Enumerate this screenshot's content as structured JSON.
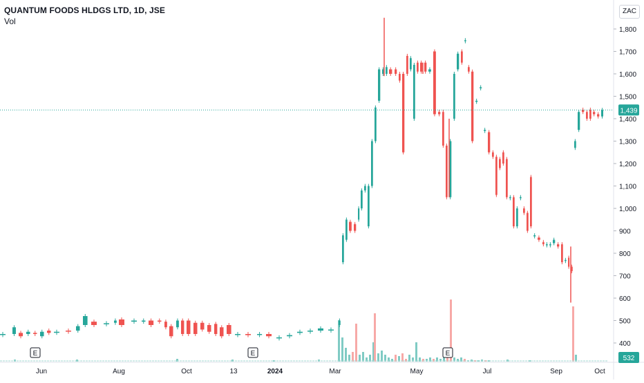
{
  "header": {
    "symbol_title": "QUANTUM FOODS HLDGS LTD, 1D, JSE",
    "volume_label": "Vol",
    "currency": "ZAC"
  },
  "chart_data": {
    "type": "candlestick",
    "title": "QUANTUM FOODS HLDGS LTD, 1D, JSE",
    "y_axis": {
      "position": "right",
      "ylim": [
        330,
        1870
      ],
      "ticks": [
        400,
        500,
        600,
        700,
        800,
        900,
        1000,
        1100,
        1200,
        1300,
        1400,
        1500,
        1600,
        1700,
        1800
      ],
      "tick_labels": [
        "400",
        "500",
        "600",
        "700",
        "800",
        "900",
        "1,000",
        "1,100",
        "1,200",
        "1,300",
        "1,400",
        "1,500",
        "1,600",
        "1,700",
        "1,800"
      ]
    },
    "x_axis": {
      "tick_labels": [
        "Jun",
        "Aug",
        "Oct",
        "13",
        "2024",
        "Mar",
        "May",
        "Jul",
        "Sep",
        "Oct"
      ],
      "bold_labels": [
        "2024"
      ]
    },
    "last_price": {
      "value": 1439,
      "label": "1,439"
    },
    "last_volume_label": "532",
    "earnings_markers": [
      "E",
      "E",
      "E"
    ],
    "grid": false,
    "colors": {
      "up": "#26a69a",
      "down": "#ef5350",
      "up_volume": "#80cbc4",
      "down_volume": "#f7a9a7",
      "last_price": "#26a69a",
      "axis_text": "#131722"
    },
    "series": [
      {
        "name": "",
        "kind": "ohlc",
        "segments": [
          [
            0,
            440,
            440
          ],
          [
            18,
            440,
            470
          ],
          [
            27,
            445,
            430
          ],
          [
            38,
            440,
            450
          ],
          [
            48,
            445,
            440
          ],
          [
            58,
            430,
            450
          ],
          [
            68,
            455,
            445
          ],
          [
            78,
            450,
            450
          ],
          [
            95,
            455,
            452
          ],
          [
            110,
            455,
            475
          ],
          [
            120,
            480,
            520
          ],
          [
            132,
            495,
            480
          ],
          [
            150,
            485,
            488
          ],
          [
            165,
            490,
            500
          ],
          [
            172,
            505,
            480
          ],
          [
            190,
            495,
            500
          ],
          [
            205,
            495,
            500
          ],
          [
            215,
            500,
            480
          ],
          [
            228,
            500,
            495
          ],
          [
            238,
            495,
            470
          ],
          [
            245,
            475,
            430
          ],
          [
            255,
            470,
            500
          ],
          [
            262,
            500,
            440
          ],
          [
            270,
            500,
            440
          ],
          [
            280,
            490,
            440
          ],
          [
            290,
            490,
            460
          ],
          [
            300,
            480,
            450
          ],
          [
            310,
            485,
            440
          ],
          [
            318,
            470,
            430
          ],
          [
            328,
            480,
            440
          ],
          [
            340,
            440,
            440
          ],
          [
            355,
            440,
            435
          ],
          [
            372,
            440,
            440
          ],
          [
            385,
            440,
            430
          ],
          [
            400,
            425,
            425
          ],
          [
            415,
            430,
            435
          ],
          [
            430,
            445,
            450
          ],
          [
            445,
            455,
            455
          ],
          [
            460,
            455,
            465
          ],
          [
            475,
            460,
            460
          ],
          [
            490,
            480,
            500
          ],
          [
            495,
            760,
            880
          ],
          [
            500,
            860,
            950
          ],
          [
            505,
            940,
            900
          ],
          [
            512,
            930,
            900
          ],
          [
            518,
            950,
            1000
          ],
          [
            522,
            1000,
            1080
          ],
          [
            527,
            1080,
            1100
          ],
          [
            532,
            920,
            1100
          ],
          [
            537,
            1100,
            1300
          ],
          [
            542,
            1300,
            1450
          ],
          [
            547,
            1480,
            1620
          ],
          [
            553,
            1600,
            1620
          ],
          [
            558,
            1600,
            1630
          ],
          [
            563,
            1620,
            1600
          ],
          [
            571,
            1620,
            1600
          ],
          [
            577,
            1600,
            1570
          ],
          [
            582,
            1600,
            1250
          ],
          [
            588,
            1680,
            1600
          ],
          [
            593,
            1620,
            1670
          ],
          [
            598,
            1400,
            1640
          ],
          [
            603,
            1650,
            1610
          ],
          [
            608,
            1650,
            1610
          ],
          [
            614,
            1650,
            1610
          ],
          [
            620,
            1610,
            1620
          ],
          [
            627,
            1700,
            1420
          ],
          [
            634,
            1430,
            1420
          ],
          [
            640,
            1430,
            1280
          ],
          [
            645,
            1280,
            1050
          ],
          [
            650,
            1050,
            1300
          ],
          [
            656,
            1400,
            1600
          ],
          [
            661,
            1620,
            1690
          ],
          [
            667,
            1700,
            1650
          ],
          [
            672,
            1750,
            1750
          ],
          [
            677,
            1630,
            1610
          ],
          [
            682,
            1610,
            1300
          ],
          [
            688,
            1480,
            1480
          ],
          [
            694,
            1540,
            1540
          ],
          [
            700,
            1350,
            1350
          ],
          [
            706,
            1340,
            1250
          ],
          [
            712,
            1250,
            1230
          ],
          [
            717,
            1230,
            1060
          ],
          [
            722,
            1220,
            1180
          ],
          [
            727,
            1250,
            1200
          ],
          [
            732,
            1220,
            1050
          ],
          [
            737,
            1050,
            1050
          ],
          [
            742,
            1050,
            920
          ],
          [
            747,
            920,
            1000
          ],
          [
            752,
            1050,
            1050
          ],
          [
            757,
            1000,
            980
          ],
          [
            762,
            980,
            900
          ],
          [
            767,
            1140,
            920
          ],
          [
            772,
            880,
            880
          ],
          [
            778,
            870,
            860
          ],
          [
            785,
            850,
            840
          ],
          [
            790,
            840,
            840
          ],
          [
            795,
            840,
            840
          ],
          [
            800,
            845,
            860
          ],
          [
            806,
            840,
            830
          ],
          [
            812,
            840,
            760
          ],
          [
            817,
            770,
            770
          ],
          [
            822,
            780,
            740
          ],
          [
            826,
            740,
            720
          ],
          [
            831,
            1270,
            1300
          ],
          [
            836,
            1350,
            1430
          ],
          [
            842,
            1440,
            1430
          ],
          [
            848,
            1430,
            1400
          ],
          [
            853,
            1440,
            1400
          ],
          [
            858,
            1430,
            1420
          ],
          [
            864,
            1420,
            1410
          ],
          [
            870,
            1410,
            1439
          ]
        ],
        "spikes": [
          [
            556,
            1850,
            1590
          ],
          [
            612,
            1650,
            1600
          ],
          [
            650,
            1400,
            1050
          ],
          [
            674,
            1750,
            1750
          ],
          [
            826,
            830,
            580
          ]
        ]
      }
    ],
    "volume_bars": [
      [
        489,
        60,
        "up"
      ],
      [
        494,
        35,
        "up"
      ],
      [
        499,
        20,
        "up"
      ],
      [
        504,
        10,
        "up"
      ],
      [
        509,
        14,
        "down"
      ],
      [
        514,
        55,
        "down"
      ],
      [
        519,
        10,
        "up"
      ],
      [
        524,
        14,
        "up"
      ],
      [
        529,
        6,
        "up"
      ],
      [
        534,
        10,
        "up"
      ],
      [
        539,
        28,
        "up"
      ],
      [
        541,
        70,
        "down"
      ],
      [
        546,
        12,
        "up"
      ],
      [
        551,
        16,
        "up"
      ],
      [
        556,
        10,
        "up"
      ],
      [
        561,
        6,
        "up"
      ],
      [
        566,
        4,
        "up"
      ],
      [
        571,
        10,
        "down"
      ],
      [
        576,
        8,
        "up"
      ],
      [
        581,
        12,
        "down"
      ],
      [
        586,
        4,
        "down"
      ],
      [
        591,
        10,
        "up"
      ],
      [
        596,
        6,
        "up"
      ],
      [
        601,
        28,
        "up"
      ],
      [
        606,
        6,
        "up"
      ],
      [
        611,
        4,
        "down"
      ],
      [
        616,
        4,
        "up"
      ],
      [
        621,
        6,
        "up"
      ],
      [
        626,
        4,
        "down"
      ],
      [
        631,
        6,
        "up"
      ],
      [
        636,
        4,
        "up"
      ],
      [
        641,
        6,
        "up"
      ],
      [
        646,
        10,
        "down"
      ],
      [
        651,
        90,
        "down"
      ],
      [
        656,
        6,
        "up"
      ],
      [
        661,
        4,
        "up"
      ],
      [
        666,
        6,
        "up"
      ],
      [
        671,
        4,
        "down"
      ],
      [
        676,
        2,
        "up"
      ],
      [
        681,
        3,
        "up"
      ],
      [
        686,
        2,
        "down"
      ],
      [
        691,
        2,
        "up"
      ],
      [
        696,
        3,
        "up"
      ],
      [
        701,
        2,
        "down"
      ],
      [
        706,
        2,
        "up"
      ],
      [
        733,
        3,
        "up"
      ],
      [
        765,
        2,
        "up"
      ],
      [
        828,
        80,
        "down"
      ],
      [
        832,
        10,
        "up"
      ],
      [
        20,
        3,
        "up"
      ],
      [
        110,
        3,
        "up"
      ],
      [
        255,
        4,
        "up"
      ],
      [
        335,
        3,
        "up"
      ],
      [
        395,
        2,
        "up"
      ],
      [
        460,
        3,
        "up"
      ]
    ]
  }
}
